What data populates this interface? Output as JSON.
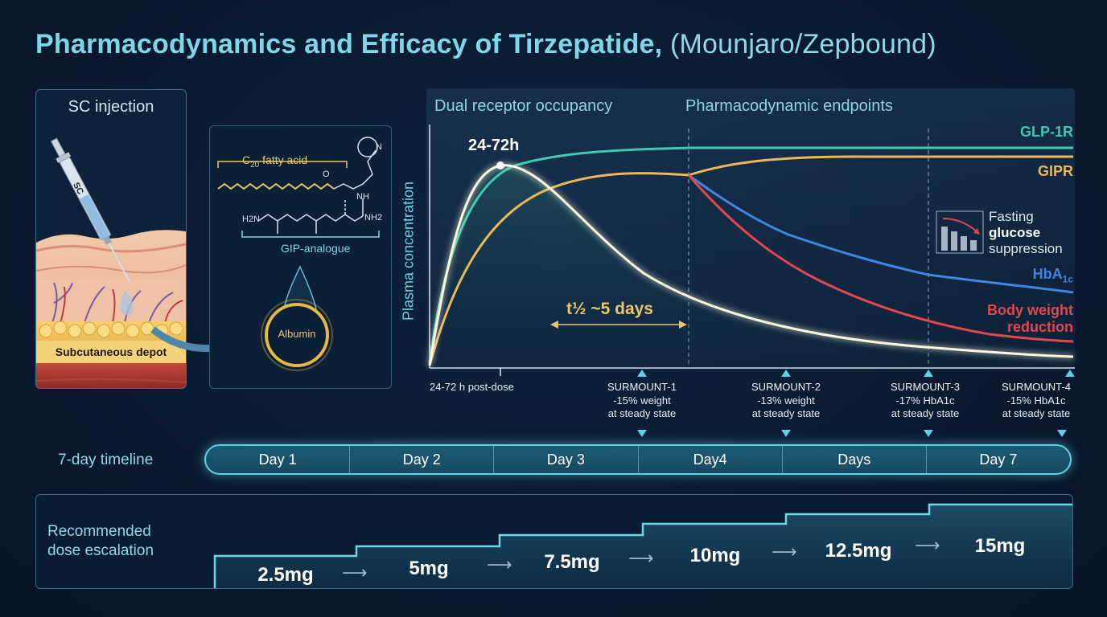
{
  "title": {
    "main": "Pharmacodynamics and Efficacy of Tirzepatide,",
    "sub": "(Mounjaro/Zepbound)"
  },
  "injection_panel": {
    "title": "SC injection",
    "syringe_label": "SC",
    "depot_label": "Subcutaneous depot"
  },
  "molecule_panel": {
    "fatty_acid_label": "C",
    "fatty_acid_sub": "20",
    "fatty_acid_rest": " fatty acid",
    "analogue_label": "GIP-analogue",
    "albumin_label": "Albumin",
    "atoms": [
      "H2N",
      "NH2",
      "NH",
      "O",
      "N"
    ]
  },
  "chart_data": {
    "type": "line",
    "ylabel": "Plasma concentration",
    "sections": [
      "Dual receptor occupancy",
      "Pharmacodynamic endpoints"
    ],
    "peak_label": "24-72h",
    "peak_axis_label": "24-72 h post-dose",
    "half_life_label": "t½ ~5 days",
    "series": [
      {
        "name": "GLP-1R",
        "color": "#3fc9b0"
      },
      {
        "name": "GIPR",
        "color": "#e8b85a"
      },
      {
        "name": "HbA",
        "sub": "1c",
        "color": "#3f86e0"
      },
      {
        "name": "Body weight reduction",
        "color": "#e2474f"
      }
    ],
    "inset_label": {
      "line1": "Fasting",
      "line2": "glucose",
      "line3": "suppression"
    },
    "trials": [
      {
        "name": "SURMOUNT-1",
        "line1": "-15% weight",
        "line2": "at steady state"
      },
      {
        "name": "SURMOUNT-2",
        "line1": "-13% weight",
        "line2": "at steady state"
      },
      {
        "name": "SURMOUNT-3",
        "line1": "-17% HbA1c",
        "line2": "at steady state"
      },
      {
        "name": "SURMOUNT-4",
        "line1": "-15% HbA1c",
        "line2": "at steady state"
      }
    ]
  },
  "timeline": {
    "label": "7-day timeline",
    "days": [
      "Day 1",
      "Day 2",
      "Day 3",
      "Day4",
      "Days",
      "Day 7"
    ]
  },
  "dose": {
    "label_line1": "Recommended",
    "label_line2": "dose escalation",
    "steps": [
      "2.5mg",
      "5mg",
      "7.5mg",
      "10mg",
      "12.5mg",
      "15mg"
    ]
  }
}
